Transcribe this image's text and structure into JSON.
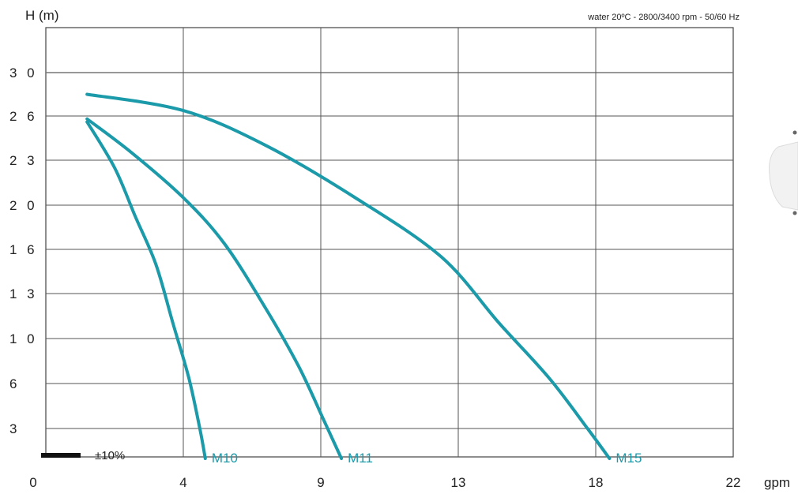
{
  "chart_data": {
    "type": "line",
    "ylabel": "H (m)",
    "xlabel": "gpm",
    "subtitle": "water 20ºC - 2800/3400 rpm - 50/60 Hz",
    "y_ticks": [
      "3 0",
      "2 6",
      "2 3",
      "2 0",
      "1 6",
      "1 3",
      "1 0",
      "6",
      "3"
    ],
    "x_ticks": [
      "0",
      "4",
      "9",
      "13",
      "18",
      "22"
    ],
    "tolerance_label": "±10%",
    "ylim": [
      0,
      33
    ],
    "xlim": [
      0,
      22
    ],
    "grid": true,
    "line_color": "#1b9aaa",
    "series": [
      {
        "name": "M10",
        "points": [
          [
            1.2,
            25.6
          ],
          [
            2.0,
            22.5
          ],
          [
            2.6,
            19.0
          ],
          [
            3.2,
            15.0
          ],
          [
            3.7,
            11.0
          ],
          [
            4.2,
            6.5
          ],
          [
            4.6,
            3.0
          ],
          [
            4.8,
            1.0
          ]
        ]
      },
      {
        "name": "M11",
        "points": [
          [
            1.2,
            25.8
          ],
          [
            2.5,
            23.5
          ],
          [
            4.0,
            20.5
          ],
          [
            5.5,
            16.5
          ],
          [
            7.0,
            12.0
          ],
          [
            8.2,
            7.5
          ],
          [
            9.1,
            3.5
          ],
          [
            9.6,
            1.0
          ]
        ]
      },
      {
        "name": "M15",
        "points": [
          [
            1.2,
            28.0
          ],
          [
            4.0,
            26.5
          ],
          [
            7.0,
            24.0
          ],
          [
            10.0,
            20.5
          ],
          [
            12.5,
            15.5
          ],
          [
            14.5,
            11.0
          ],
          [
            16.3,
            6.5
          ],
          [
            17.7,
            3.0
          ],
          [
            18.4,
            1.0
          ]
        ]
      }
    ]
  }
}
